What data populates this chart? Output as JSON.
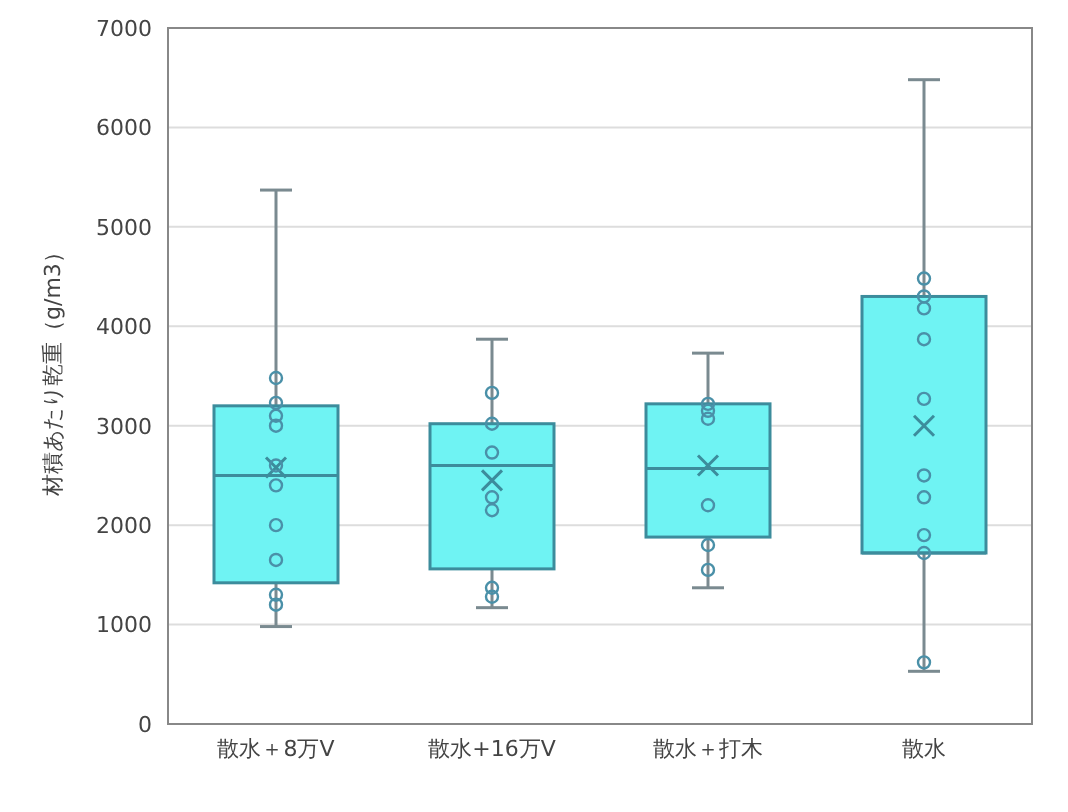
{
  "chart_data": {
    "type": "box",
    "ylabel": "材積あたり乾重（g/m3）",
    "categories": [
      "散水＋8万V",
      "散水+16万V",
      "散水＋打木",
      "散水"
    ],
    "color": "#6ff3f3",
    "boxes": [
      {
        "low": 980,
        "q1": 1420,
        "median": 2500,
        "q3": 3200,
        "high": 5370,
        "mean": 2580
      },
      {
        "low": 1170,
        "q1": 1560,
        "median": 2600,
        "q3": 3020,
        "high": 3870,
        "mean": 2450
      },
      {
        "low": 1370,
        "q1": 1880,
        "median": 2570,
        "q3": 3220,
        "high": 3730,
        "mean": 2600
      },
      {
        "low": 530,
        "q1": 1720,
        "median": 1720,
        "q3": 4300,
        "high": 6480,
        "mean": 3000
      }
    ],
    "series": [
      {
        "type": "scatter",
        "color": "#4a90a8",
        "x": [
          "散水＋8万V",
          "散水＋8万V",
          "散水＋8万V",
          "散水＋8万V",
          "散水＋8万V",
          "散水＋8万V",
          "散水＋8万V",
          "散水＋8万V",
          "散水＋8万V",
          "散水＋8万V",
          "散水+16万V",
          "散水+16万V",
          "散水+16万V",
          "散水+16万V",
          "散水+16万V",
          "散水+16万V",
          "散水+16万V",
          "散水＋打木",
          "散水＋打木",
          "散水＋打木",
          "散水＋打木",
          "散水＋打木",
          "散水＋打木",
          "散水",
          "散水",
          "散水",
          "散水",
          "散水",
          "散水",
          "散水",
          "散水",
          "散水",
          "散水"
        ],
        "values": [
          3480,
          3230,
          3100,
          3000,
          2600,
          2400,
          2000,
          1650,
          1300,
          1200,
          3330,
          3020,
          2730,
          2280,
          2150,
          1370,
          1280,
          3220,
          3150,
          3070,
          2200,
          1800,
          1550,
          4480,
          4300,
          4180,
          3870,
          3270,
          2500,
          2280,
          1900,
          1720,
          620
        ]
      }
    ],
    "ylim": [
      0,
      7000
    ],
    "yticks": [
      0,
      1000,
      2000,
      3000,
      4000,
      5000,
      6000,
      7000
    ],
    "grid": "y",
    "marker": "circle"
  }
}
